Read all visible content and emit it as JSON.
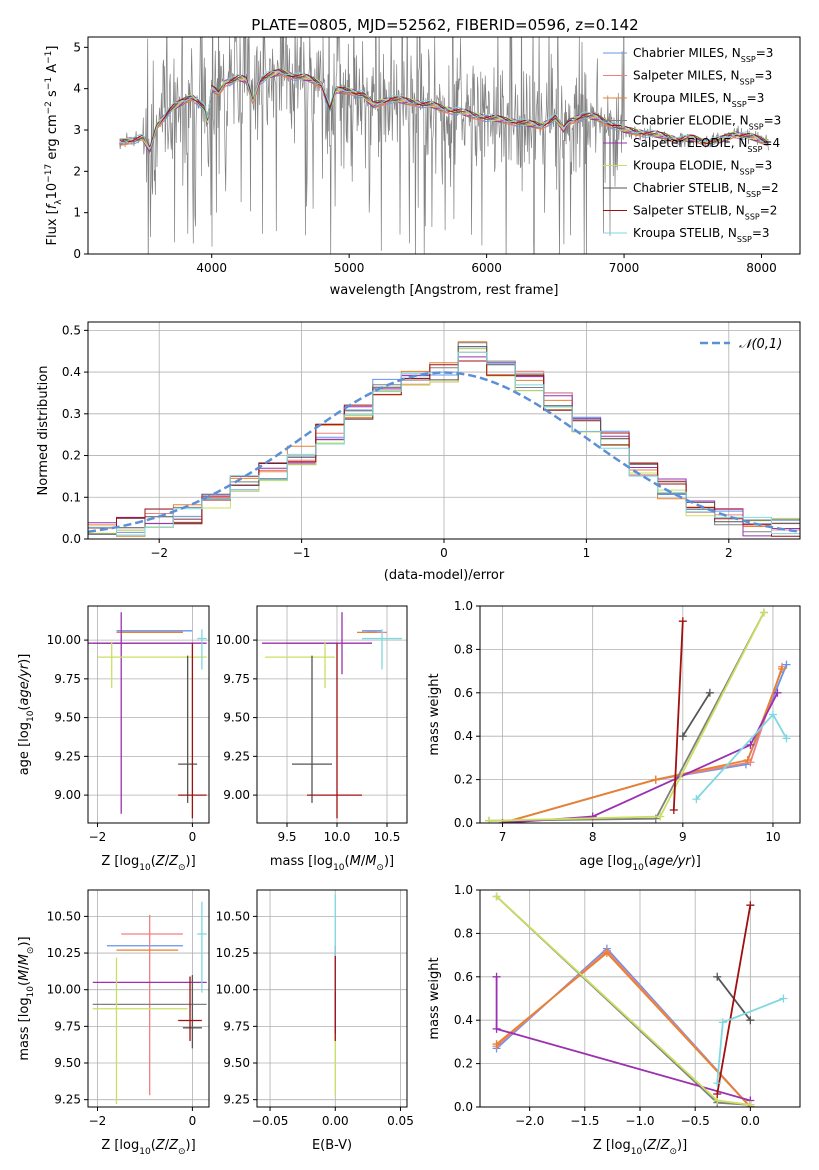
{
  "figure_title": "PLATE=0805, MJD=52562, FIBERID=0596, z=0.142",
  "colors": {
    "Chabrier MILES": "#6495ED",
    "Salpeter MILES": "#F08080",
    "Kroupa MILES": "#E9822E",
    "Chabrier ELODIE": "#808080",
    "Salpeter ELODIE": "#9B30B0",
    "Kroupa ELODIE": "#C8E060",
    "Chabrier STELIB": "#555555",
    "Salpeter STELIB": "#A01010",
    "Kroupa STELIB": "#7FD8E0",
    "normal": "#5B8FD8",
    "data": "#808080"
  },
  "chart_data": [
    {
      "id": "spectrum",
      "type": "line",
      "xlabel": "wavelength [Angstrom, rest frame]",
      "ylabel_parts": [
        "Flux [",
        "f",
        "λ",
        "10",
        "−17",
        " erg cm",
        "−2",
        " s",
        "−1",
        " A",
        "−1",
        "]"
      ],
      "xlim": [
        3100,
        8280
      ],
      "ylim": [
        0,
        5.25
      ],
      "xticks": [
        4000,
        5000,
        6000,
        7000,
        8000
      ],
      "yticks": [
        0,
        1,
        2,
        3,
        4,
        5
      ],
      "legend_position": "upper-right",
      "legend": [
        {
          "name": "Chabrier MILES",
          "nssp": "3"
        },
        {
          "name": "Salpeter MILES",
          "nssp": "3"
        },
        {
          "name": "Kroupa MILES",
          "nssp": "3"
        },
        {
          "name": "Chabrier ELODIE",
          "nssp": "3"
        },
        {
          "name": "Salpeter ELODIE",
          "nssp": "4"
        },
        {
          "name": "Kroupa ELODIE",
          "nssp": "3"
        },
        {
          "name": "Chabrier STELIB",
          "nssp": "2"
        },
        {
          "name": "Salpeter STELIB",
          "nssp": "2"
        },
        {
          "name": "Kroupa STELIB",
          "nssp": "3"
        }
      ],
      "model_curve": {
        "x": [
          3330,
          3400,
          3500,
          3550,
          3600,
          3650,
          3700,
          3750,
          3800,
          3850,
          3900,
          3950,
          3970,
          4000,
          4050,
          4100,
          4150,
          4200,
          4250,
          4300,
          4350,
          4400,
          4450,
          4500,
          4600,
          4700,
          4800,
          4860,
          4900,
          5000,
          5100,
          5175,
          5300,
          5400,
          5500,
          5600,
          5700,
          5800,
          5900,
          6000,
          6100,
          6200,
          6300,
          6400,
          6500,
          6560,
          6600,
          6700,
          6800,
          6900,
          7000,
          7100,
          7200,
          7300,
          7400,
          7500,
          7600,
          7700,
          7800,
          7900,
          8000,
          8050
        ],
        "y": [
          2.7,
          2.75,
          2.8,
          2.5,
          3.1,
          3.3,
          3.5,
          3.6,
          3.7,
          3.8,
          3.7,
          3.5,
          3.2,
          4.0,
          3.9,
          4.15,
          4.2,
          4.25,
          4.2,
          3.7,
          4.2,
          4.3,
          4.35,
          4.4,
          4.3,
          4.25,
          4.1,
          3.5,
          3.95,
          3.95,
          3.85,
          3.6,
          3.75,
          3.7,
          3.65,
          3.6,
          3.5,
          3.45,
          3.35,
          3.3,
          3.25,
          3.2,
          3.15,
          3.1,
          3.3,
          3.0,
          3.2,
          3.35,
          3.3,
          3.15,
          3.0,
          2.95,
          2.9,
          2.85,
          2.75,
          2.8,
          2.7,
          2.75,
          2.9,
          2.85,
          2.75,
          2.7
        ]
      }
    },
    {
      "id": "residuals",
      "type": "histogram",
      "xlabel": "(data-model)/error",
      "ylabel": "Normed distribution",
      "xlim": [
        -2.5,
        2.5
      ],
      "ylim": [
        0,
        0.52
      ],
      "xticks": [
        -2,
        -1,
        0,
        1,
        2
      ],
      "yticks": [
        0.0,
        0.1,
        0.2,
        0.3,
        0.4,
        0.5
      ],
      "grid": true,
      "legend_position": "upper-right",
      "legend_label": "𝒩(0,1)",
      "bin_edges": [
        -2.5,
        -2.3,
        -2.1,
        -1.9,
        -1.7,
        -1.5,
        -1.3,
        -1.1,
        -0.9,
        -0.7,
        -0.5,
        -0.3,
        -0.1,
        0.1,
        0.3,
        0.5,
        0.7,
        0.9,
        1.1,
        1.3,
        1.5,
        1.7,
        1.9,
        2.1,
        2.3,
        2.5
      ],
      "counts": [
        0.02,
        0.03,
        0.05,
        0.06,
        0.09,
        0.13,
        0.16,
        0.2,
        0.25,
        0.31,
        0.36,
        0.38,
        0.4,
        0.45,
        0.41,
        0.38,
        0.33,
        0.28,
        0.24,
        0.17,
        0.12,
        0.08,
        0.05,
        0.03,
        0.03
      ]
    },
    {
      "id": "age_vs_Z",
      "type": "errorbar",
      "xlabel": "Z [log10(Z/Z⊙)]",
      "ylabel": "age  [log10(age/yr)]",
      "xlim": [
        -2.2,
        0.35
      ],
      "ylim": [
        8.82,
        10.22
      ],
      "xticks": [
        -2,
        0
      ],
      "yticks": [
        9.0,
        9.25,
        9.5,
        9.75,
        10.0
      ],
      "grid": true,
      "bars": [
        {
          "model": "Chabrier MILES",
          "x": -0.8,
          "xerr": [
            0.8,
            0.8
          ],
          "y": 10.06,
          "yerr": [
            0,
            0
          ]
        },
        {
          "model": "Salpeter MILES",
          "x": -0.4,
          "xerr": [
            1.1,
            0.2
          ],
          "y": 10.05,
          "yerr": [
            0,
            0
          ]
        },
        {
          "model": "Kroupa MILES",
          "x": -0.6,
          "xerr": [
            1.0,
            0.4
          ],
          "y": 10.05,
          "yerr": [
            0,
            0
          ]
        },
        {
          "model": "Chabrier ELODIE",
          "x": -0.9,
          "xerr": [
            1.2,
            0.9
          ],
          "y": 9.98,
          "yerr": [
            0,
            0
          ]
        },
        {
          "model": "Salpeter ELODIE",
          "x": -1.5,
          "xerr": [
            0.7,
            1.8
          ],
          "y": 9.98,
          "yerr": [
            1.1,
            0.2
          ]
        },
        {
          "model": "Kroupa ELODIE",
          "x": -1.7,
          "xerr": [
            0.3,
            2.0
          ],
          "y": 9.89,
          "yerr": [
            0.2,
            0.1
          ]
        },
        {
          "model": "Chabrier STELIB",
          "x": -0.1,
          "xerr": [
            0.2,
            0.2
          ],
          "y": 9.2,
          "yerr": [
            0.25,
            0.7
          ]
        },
        {
          "model": "Salpeter STELIB",
          "x": 0.0,
          "xerr": [
            0.3,
            0.3
          ],
          "y": 9.0,
          "yerr": [
            0.15,
            0.98
          ]
        },
        {
          "model": "Kroupa STELIB",
          "x": 0.2,
          "xerr": [
            0.1,
            0.1
          ],
          "y": 10.01,
          "yerr": [
            0.2,
            0.06
          ]
        }
      ]
    },
    {
      "id": "age_vs_mass",
      "type": "errorbar",
      "xlabel": "mass [log10(M/M⊙)]",
      "ylabel": "",
      "xlim": [
        9.2,
        10.7
      ],
      "ylim": [
        8.82,
        10.22
      ],
      "xticks": [
        9.5,
        10.0,
        10.5
      ],
      "yticks": [
        9.0,
        9.25,
        9.5,
        9.75,
        10.0
      ],
      "grid": true,
      "bars": [
        {
          "model": "Chabrier MILES",
          "x": 10.35,
          "xerr": [
            0.1,
            0.1
          ],
          "y": 10.06,
          "yerr": [
            0,
            0
          ]
        },
        {
          "model": "Salpeter MILES",
          "x": 10.4,
          "xerr": [
            0.1,
            0.1
          ],
          "y": 10.05,
          "yerr": [
            0,
            0
          ]
        },
        {
          "model": "Kroupa MILES",
          "x": 10.3,
          "xerr": [
            0.1,
            0.1
          ],
          "y": 10.05,
          "yerr": [
            0,
            0
          ]
        },
        {
          "model": "Chabrier ELODIE",
          "x": 9.9,
          "xerr": [
            0.4,
            0.1
          ],
          "y": 9.98,
          "yerr": [
            0,
            0
          ]
        },
        {
          "model": "Salpeter ELODIE",
          "x": 10.05,
          "xerr": [
            0.8,
            0.3
          ],
          "y": 9.98,
          "yerr": [
            0.2,
            0.2
          ]
        },
        {
          "model": "Kroupa ELODIE",
          "x": 9.88,
          "xerr": [
            0.6,
            0.1
          ],
          "y": 9.89,
          "yerr": [
            0.2,
            0.1
          ]
        },
        {
          "model": "Chabrier STELIB",
          "x": 9.75,
          "xerr": [
            0.2,
            0.2
          ],
          "y": 9.2,
          "yerr": [
            0.25,
            0.7
          ]
        },
        {
          "model": "Salpeter STELIB",
          "x": 10.0,
          "xerr": [
            0.3,
            0.25
          ],
          "y": 9.0,
          "yerr": [
            0.15,
            0.98
          ]
        },
        {
          "model": "Kroupa STELIB",
          "x": 10.45,
          "xerr": [
            0.2,
            0.2
          ],
          "y": 10.01,
          "yerr": [
            0.2,
            0.06
          ]
        }
      ]
    },
    {
      "id": "weight_vs_age",
      "type": "line",
      "xlabel": "age  [log10(age/yr)]",
      "ylabel": "mass weight",
      "xlim": [
        6.75,
        10.3
      ],
      "ylim": [
        0,
        1.0
      ],
      "xticks": [
        7,
        8,
        9,
        10
      ],
      "yticks": [
        0.0,
        0.2,
        0.4,
        0.6,
        0.8,
        1.0
      ],
      "grid": true,
      "series": [
        {
          "model": "Chabrier MILES",
          "x": [
            7.0,
            8.7,
            9.7,
            10.15
          ],
          "y": [
            0.0,
            0.2,
            0.27,
            0.73
          ]
        },
        {
          "model": "Salpeter MILES",
          "x": [
            7.0,
            8.7,
            9.75,
            10.1
          ],
          "y": [
            0.0,
            0.2,
            0.28,
            0.72
          ]
        },
        {
          "model": "Kroupa MILES",
          "x": [
            7.0,
            8.7,
            9.72,
            10.1
          ],
          "y": [
            0.0,
            0.2,
            0.29,
            0.71
          ]
        },
        {
          "model": "Chabrier ELODIE",
          "x": [
            6.85,
            8.7,
            9.9
          ],
          "y": [
            0.01,
            0.02,
            0.97
          ]
        },
        {
          "model": "Salpeter ELODIE",
          "x": [
            7.0,
            8.0,
            9.75,
            10.05
          ],
          "y": [
            0.0,
            0.03,
            0.36,
            0.6
          ]
        },
        {
          "model": "Kroupa ELODIE",
          "x": [
            6.85,
            8.75,
            9.9
          ],
          "y": [
            0.01,
            0.03,
            0.97
          ]
        },
        {
          "model": "Chabrier STELIB",
          "x": [
            9.0,
            9.3
          ],
          "y": [
            0.4,
            0.6
          ]
        },
        {
          "model": "Salpeter STELIB",
          "x": [
            8.9,
            9.0
          ],
          "y": [
            0.06,
            0.93
          ]
        },
        {
          "model": "Kroupa STELIB",
          "x": [
            9.15,
            10.0,
            10.15
          ],
          "y": [
            0.11,
            0.5,
            0.39
          ]
        }
      ]
    },
    {
      "id": "mass_vs_Z",
      "type": "errorbar",
      "xlabel": "Z [log10(Z/Z⊙)]",
      "ylabel": "mass [log10(M/M⊙)]",
      "xlim": [
        -2.2,
        0.35
      ],
      "ylim": [
        9.2,
        10.68
      ],
      "xticks": [
        -2,
        0
      ],
      "yticks": [
        9.25,
        9.5,
        9.75,
        10.0,
        10.25,
        10.5
      ],
      "grid": true,
      "bars": [
        {
          "model": "Chabrier MILES",
          "x": -1.0,
          "xerr": [
            0.8,
            0.8
          ],
          "y": 10.3,
          "yerr": [
            0,
            0
          ]
        },
        {
          "model": "Salpeter MILES",
          "x": -0.9,
          "xerr": [
            0.6,
            0.7
          ],
          "y": 10.38,
          "yerr": [
            1.1,
            0.13
          ]
        },
        {
          "model": "Kroupa MILES",
          "x": -1.0,
          "xerr": [
            0.6,
            0.7
          ],
          "y": 10.27,
          "yerr": [
            0,
            0
          ]
        },
        {
          "model": "Chabrier ELODIE",
          "x": -0.9,
          "xerr": [
            1.2,
            1.2
          ],
          "y": 9.9,
          "yerr": [
            0,
            0
          ]
        },
        {
          "model": "Salpeter ELODIE",
          "x": -0.9,
          "xerr": [
            1.2,
            1.2
          ],
          "y": 10.05,
          "yerr": [
            0,
            0
          ]
        },
        {
          "model": "Kroupa ELODIE",
          "x": -1.6,
          "xerr": [
            0.5,
            1.5
          ],
          "y": 9.87,
          "yerr": [
            0.65,
            0.35
          ]
        },
        {
          "model": "Chabrier STELIB",
          "x": 0.0,
          "xerr": [
            0.2,
            0.2
          ],
          "y": 9.74,
          "yerr": [
            0.14,
            0.36
          ]
        },
        {
          "model": "Salpeter STELIB",
          "x": -0.05,
          "xerr": [
            0.25,
            0.25
          ],
          "y": 9.79,
          "yerr": [
            0.14,
            0.3
          ]
        },
        {
          "model": "Kroupa STELIB",
          "x": 0.2,
          "xerr": [
            0.1,
            0.1
          ],
          "y": 10.38,
          "yerr": [
            0.4,
            0.22
          ]
        }
      ]
    },
    {
      "id": "mass_vs_ebv",
      "type": "errorbar",
      "xlabel": "E(B-V)",
      "ylabel": "",
      "xlim": [
        -0.06,
        0.055
      ],
      "ylim": [
        9.2,
        10.68
      ],
      "xticks": [
        -0.05,
        0.0,
        0.05
      ],
      "xtick_labels": [
        "−0.05",
        "0.00",
        "0.05"
      ],
      "yticks": [
        9.25,
        9.5,
        9.75,
        10.0,
        10.25,
        10.5
      ],
      "grid": true,
      "bars": [
        {
          "model": "Kroupa ELODIE",
          "x": 0.0,
          "xerr": [
            0,
            0
          ],
          "y": 9.85,
          "yerr": [
            0.57,
            0.4
          ]
        },
        {
          "model": "Salpeter ELODIE",
          "x": 0.0,
          "xerr": [
            0,
            0
          ],
          "y": 10.0,
          "yerr": [
            0.3,
            0.3
          ]
        },
        {
          "model": "Kroupa STELIB",
          "x": 0.0,
          "xerr": [
            0,
            0
          ],
          "y": 10.38,
          "yerr": [
            0.4,
            0.27
          ]
        },
        {
          "model": "Salpeter STELIB",
          "x": 0.0,
          "xerr": [
            0,
            0
          ],
          "y": 9.9,
          "yerr": [
            0.25,
            0.33
          ]
        }
      ]
    },
    {
      "id": "weight_vs_Z",
      "type": "line",
      "xlabel": "Z [log10(Z/Z⊙)]",
      "ylabel": "mass weight",
      "xlim": [
        -2.45,
        0.45
      ],
      "ylim": [
        0,
        1.0
      ],
      "xticks": [
        -2.0,
        -1.5,
        -1.0,
        -0.5,
        0.0
      ],
      "xtick_labels": [
        "−2.0",
        "−1.5",
        "−1.0",
        "−0.5",
        "0.0"
      ],
      "yticks": [
        0.0,
        0.2,
        0.4,
        0.6,
        0.8,
        1.0
      ],
      "grid": true,
      "series": [
        {
          "model": "Chabrier MILES",
          "x": [
            -2.3,
            -1.3,
            0.0
          ],
          "y": [
            0.27,
            0.73,
            0.0
          ]
        },
        {
          "model": "Salpeter MILES",
          "x": [
            -2.3,
            -1.3,
            0.0
          ],
          "y": [
            0.28,
            0.72,
            0.0
          ]
        },
        {
          "model": "Kroupa MILES",
          "x": [
            -2.3,
            -1.3,
            0.0
          ],
          "y": [
            0.29,
            0.71,
            0.0
          ]
        },
        {
          "model": "Chabrier ELODIE",
          "x": [
            -2.3,
            -0.3,
            0.0
          ],
          "y": [
            0.97,
            0.02,
            0.01
          ]
        },
        {
          "model": "Salpeter ELODIE",
          "x": [
            -2.3,
            -2.3,
            0.0,
            -0.0
          ],
          "y": [
            0.6,
            0.36,
            0.03,
            0.0
          ]
        },
        {
          "model": "Kroupa ELODIE",
          "x": [
            -2.3,
            -0.3,
            0.0
          ],
          "y": [
            0.97,
            0.03,
            0.01
          ]
        },
        {
          "model": "Chabrier STELIB",
          "x": [
            -0.3,
            0.0
          ],
          "y": [
            0.6,
            0.4
          ]
        },
        {
          "model": "Salpeter STELIB",
          "x": [
            -0.3,
            0.0
          ],
          "y": [
            0.06,
            0.93
          ]
        },
        {
          "model": "Kroupa STELIB",
          "x": [
            -0.3,
            -0.25,
            0.3
          ],
          "y": [
            0.11,
            0.39,
            0.5
          ]
        }
      ]
    }
  ]
}
